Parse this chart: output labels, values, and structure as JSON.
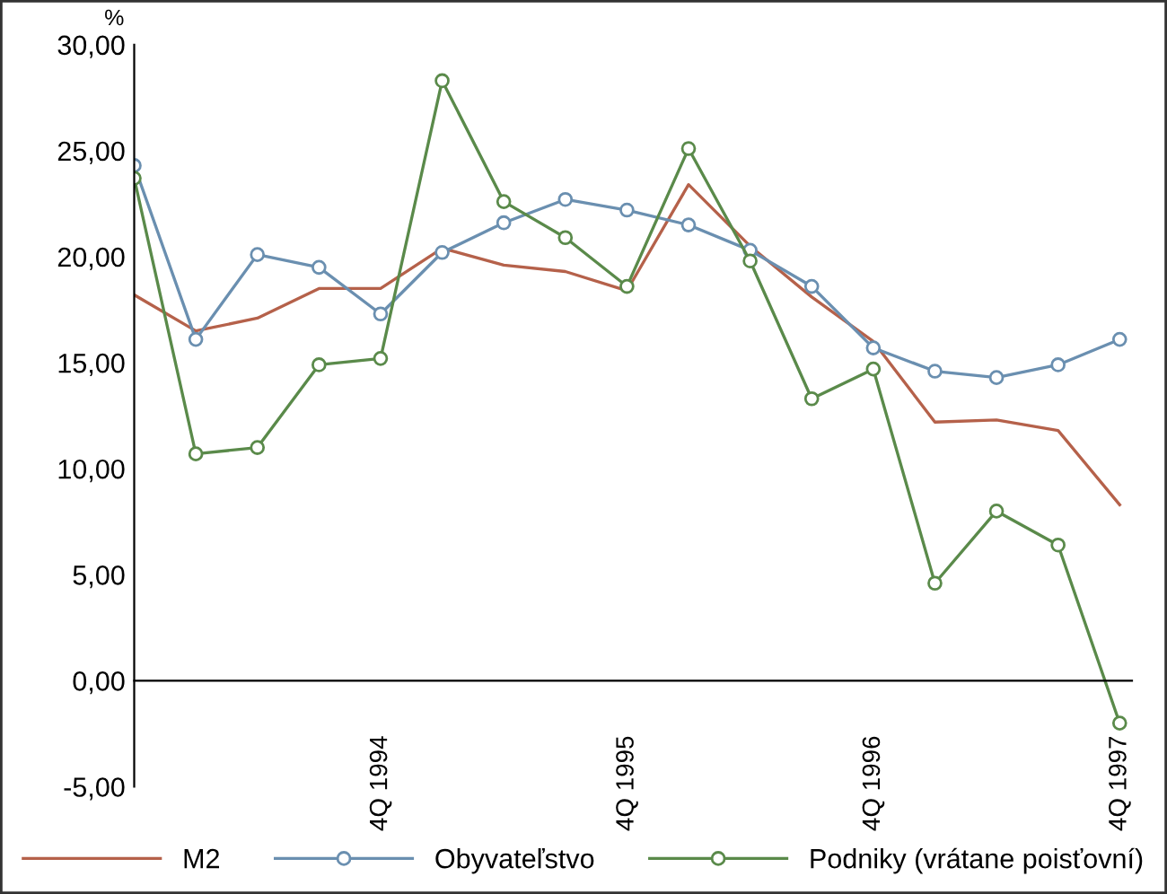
{
  "chart_data": {
    "type": "line",
    "ylabel": "%",
    "categories": [
      null,
      null,
      null,
      null,
      "4Q 1994",
      null,
      null,
      null,
      "4Q 1995",
      null,
      null,
      null,
      "4Q 1996",
      null,
      null,
      null,
      "4Q 1997"
    ],
    "series": [
      {
        "name": "M2",
        "color": "#b5614a",
        "marker": "none",
        "values": [
          18.2,
          16.5,
          17.1,
          18.5,
          18.5,
          20.4,
          19.6,
          19.3,
          18.4,
          23.4,
          20.5,
          18.1,
          16.0,
          12.2,
          12.3,
          11.8,
          8.3
        ]
      },
      {
        "name": "Obyvateľstvo",
        "color": "#6a8fb0",
        "marker": "circle",
        "values": [
          24.3,
          16.1,
          20.1,
          19.5,
          17.3,
          20.2,
          21.6,
          22.7,
          22.2,
          21.5,
          20.3,
          18.6,
          15.7,
          14.6,
          14.3,
          14.9,
          16.1
        ]
      },
      {
        "name": "Podniky (vrátane poisťovní)",
        "color": "#5a8a4a",
        "marker": "circle",
        "values": [
          23.7,
          10.7,
          11.0,
          14.9,
          15.2,
          28.3,
          22.6,
          20.9,
          18.6,
          25.1,
          19.8,
          13.3,
          14.7,
          4.6,
          8.0,
          6.4,
          -2.0
        ]
      }
    ],
    "ylim": [
      -5,
      30
    ],
    "yticks": [
      {
        "value": -5,
        "label": "-5,00"
      },
      {
        "value": 0,
        "label": "0,00"
      },
      {
        "value": 5,
        "label": "5,00"
      },
      {
        "value": 10,
        "label": "10,00"
      },
      {
        "value": 15,
        "label": "15,00"
      },
      {
        "value": 20,
        "label": "20,00"
      },
      {
        "value": 25,
        "label": "25,00"
      },
      {
        "value": 30,
        "label": "30,00"
      }
    ],
    "grid": false,
    "legend": "bottom",
    "line_style": "solid"
  }
}
